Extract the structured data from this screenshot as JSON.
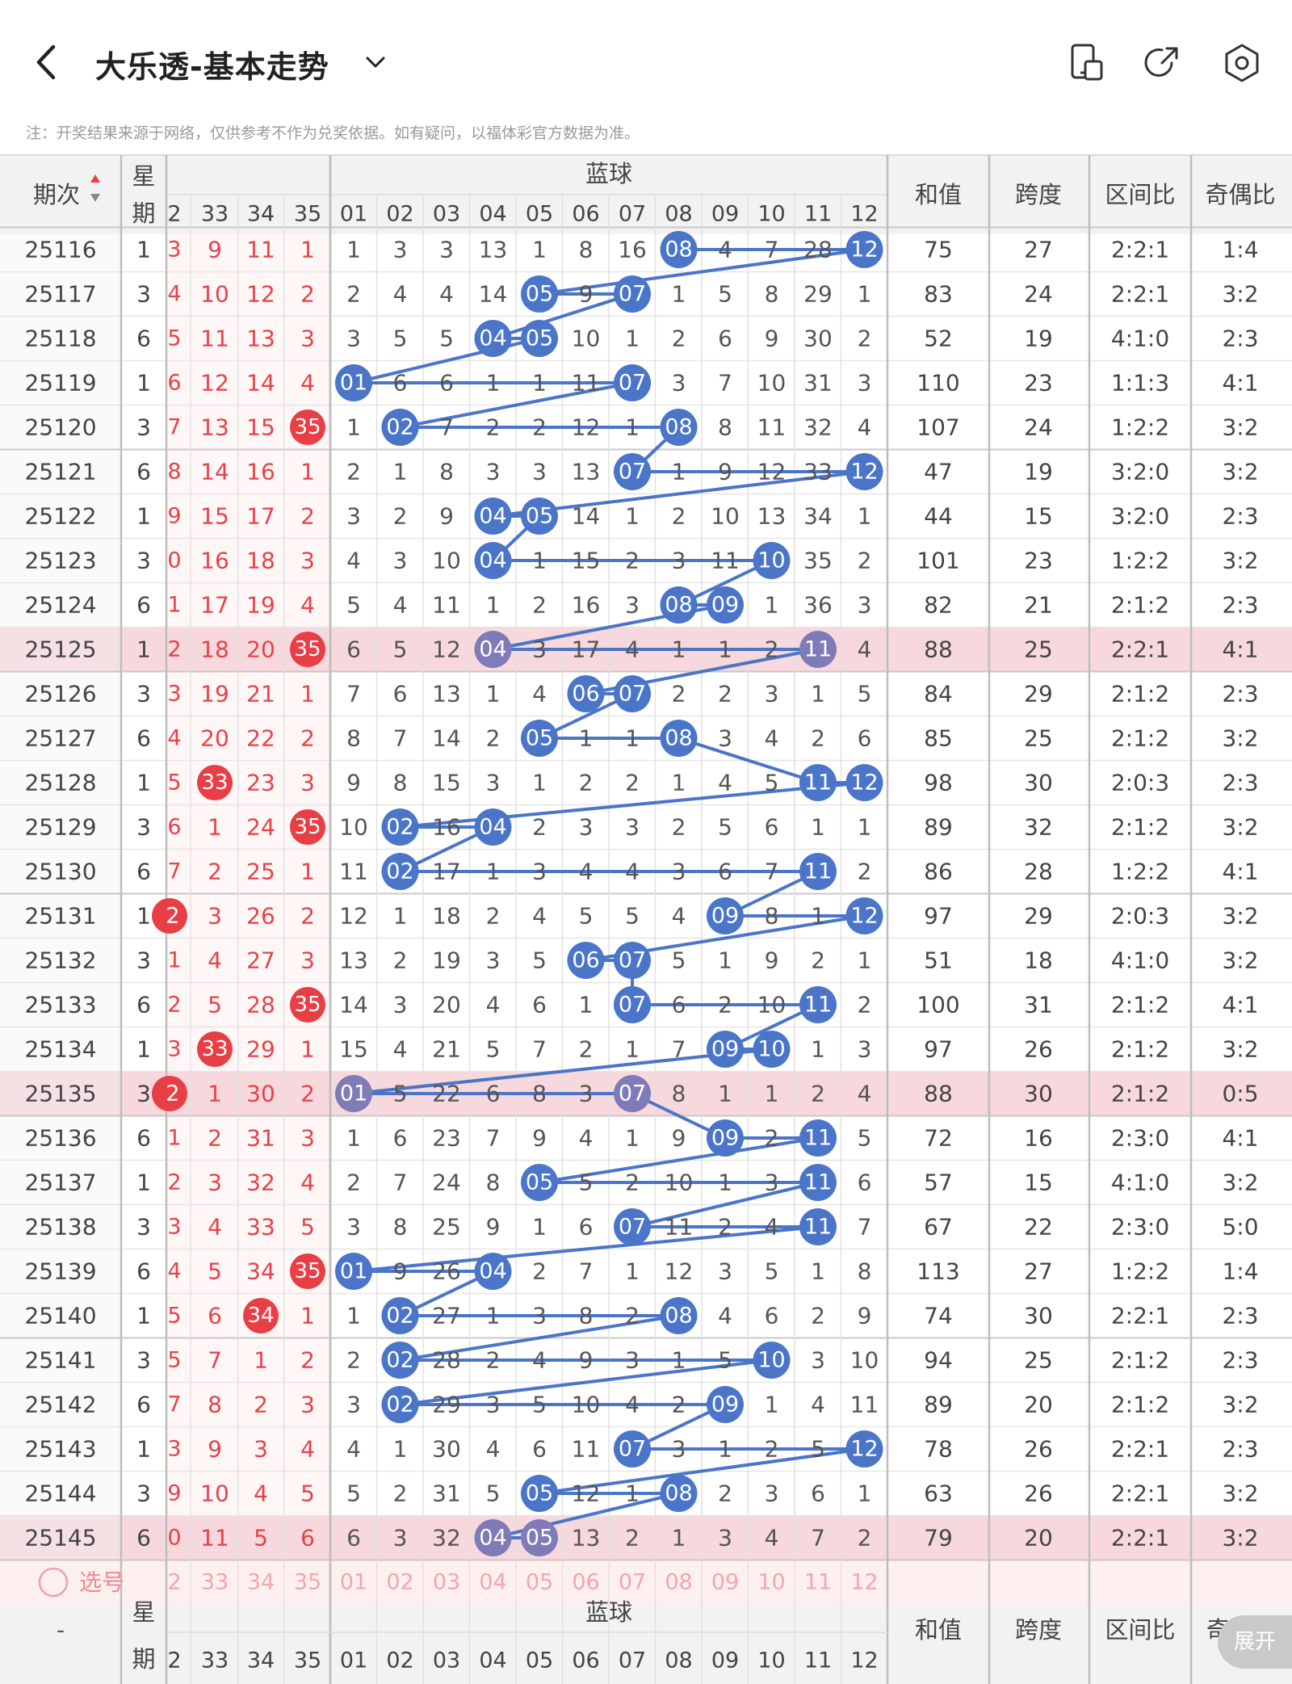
{
  "header": {
    "title": "大乐透-基本走势",
    "back_icon": "chevron-left-icon",
    "dropdown_icon": "chevron-down-icon",
    "icons": [
      "phone-layout-icon",
      "share-icon",
      "settings-icon"
    ]
  },
  "note": "注：开奖结果来源于网络，仅供参考不作为兑奖依据。如有疑问，以福体彩官方数据为准。",
  "colors": {
    "blue_ball": "#4a75c8",
    "red_ball": "#e83e46",
    "red_text": "#e6424a",
    "highlight_row": "#f7d8dc",
    "pick_row": "#fdf0ef",
    "header_bg": "#f2f2f2"
  },
  "table": {
    "col_period": "期次",
    "col_weekday": "星期",
    "front_partial": "2",
    "front_cols": [
      "33",
      "34",
      "35"
    ],
    "blue_title": "蓝球",
    "blue_cols": [
      "01",
      "02",
      "03",
      "04",
      "05",
      "06",
      "07",
      "08",
      "09",
      "10",
      "11",
      "12"
    ],
    "stat_cols": [
      "和值",
      "跨度",
      "区间比",
      "奇偶比"
    ],
    "rows": [
      {
        "p": "25116",
        "w": "1",
        "fp": "3",
        "f": [
          "9",
          "11",
          "1"
        ],
        "fb": null,
        "b": [
          "1",
          "3",
          "3",
          "13",
          "1",
          "8",
          "16",
          "08",
          "4",
          "7",
          "28",
          "12"
        ],
        "bb": [
          8,
          12
        ],
        "s": [
          "75",
          "27",
          "2:2:1",
          "1:4"
        ],
        "hl": false
      },
      {
        "p": "25117",
        "w": "3",
        "fp": "4",
        "f": [
          "10",
          "12",
          "2"
        ],
        "fb": null,
        "b": [
          "2",
          "4",
          "4",
          "14",
          "05",
          "9",
          "07",
          "1",
          "5",
          "8",
          "29",
          "1"
        ],
        "bb": [
          5,
          7
        ],
        "s": [
          "83",
          "24",
          "2:2:1",
          "3:2"
        ],
        "hl": false
      },
      {
        "p": "25118",
        "w": "6",
        "fp": "5",
        "f": [
          "11",
          "13",
          "3"
        ],
        "fb": null,
        "b": [
          "3",
          "5",
          "5",
          "04",
          "05",
          "10",
          "1",
          "2",
          "6",
          "9",
          "30",
          "2"
        ],
        "bb": [
          4,
          5
        ],
        "s": [
          "52",
          "19",
          "4:1:0",
          "2:3"
        ],
        "hl": false
      },
      {
        "p": "25119",
        "w": "1",
        "fp": "6",
        "f": [
          "12",
          "14",
          "4"
        ],
        "fb": null,
        "b": [
          "01",
          "6",
          "6",
          "1",
          "1",
          "11",
          "07",
          "3",
          "7",
          "10",
          "31",
          "3"
        ],
        "bb": [
          1,
          7
        ],
        "s": [
          "110",
          "23",
          "1:1:3",
          "4:1"
        ],
        "hl": false
      },
      {
        "p": "25120",
        "w": "3",
        "fp": "7",
        "f": [
          "13",
          "15",
          "35"
        ],
        "fb": 35,
        "b": [
          "1",
          "02",
          "7",
          "2",
          "2",
          "12",
          "1",
          "08",
          "8",
          "11",
          "32",
          "4"
        ],
        "bb": [
          2,
          8
        ],
        "s": [
          "107",
          "24",
          "1:2:2",
          "3:2"
        ],
        "hl": false
      },
      {
        "p": "25121",
        "w": "6",
        "fp": "8",
        "f": [
          "14",
          "16",
          "1"
        ],
        "fb": null,
        "b": [
          "2",
          "1",
          "8",
          "3",
          "3",
          "13",
          "07",
          "1",
          "9",
          "12",
          "33",
          "12"
        ],
        "bb": [
          7,
          12
        ],
        "s": [
          "47",
          "19",
          "3:2:0",
          "3:2"
        ],
        "hl": false
      },
      {
        "p": "25122",
        "w": "1",
        "fp": "9",
        "f": [
          "15",
          "17",
          "2"
        ],
        "fb": null,
        "b": [
          "3",
          "2",
          "9",
          "04",
          "05",
          "14",
          "1",
          "2",
          "10",
          "13",
          "34",
          "1"
        ],
        "bb": [
          4,
          5
        ],
        "s": [
          "44",
          "15",
          "3:2:0",
          "2:3"
        ],
        "hl": false
      },
      {
        "p": "25123",
        "w": "3",
        "fp": "0",
        "f": [
          "16",
          "18",
          "3"
        ],
        "fb": null,
        "b": [
          "4",
          "3",
          "10",
          "04",
          "1",
          "15",
          "2",
          "3",
          "11",
          "10",
          "35",
          "2"
        ],
        "bb": [
          4,
          10
        ],
        "s": [
          "101",
          "23",
          "1:2:2",
          "3:2"
        ],
        "hl": false
      },
      {
        "p": "25124",
        "w": "6",
        "fp": "1",
        "f": [
          "17",
          "19",
          "4"
        ],
        "fb": null,
        "b": [
          "5",
          "4",
          "11",
          "1",
          "2",
          "16",
          "3",
          "08",
          "09",
          "1",
          "36",
          "3"
        ],
        "bb": [
          8,
          9
        ],
        "s": [
          "82",
          "21",
          "2:1:2",
          "2:3"
        ],
        "hl": false
      },
      {
        "p": "25125",
        "w": "1",
        "fp": "2",
        "f": [
          "18",
          "20",
          "35"
        ],
        "fb": 35,
        "b": [
          "6",
          "5",
          "12",
          "04",
          "3",
          "17",
          "4",
          "1",
          "1",
          "2",
          "11",
          "4"
        ],
        "bb": [
          4,
          11
        ],
        "s": [
          "88",
          "25",
          "2:2:1",
          "4:1"
        ],
        "hl": true
      },
      {
        "p": "25126",
        "w": "3",
        "fp": "3",
        "f": [
          "19",
          "21",
          "1"
        ],
        "fb": null,
        "b": [
          "7",
          "6",
          "13",
          "1",
          "4",
          "06",
          "07",
          "2",
          "2",
          "3",
          "1",
          "5"
        ],
        "bb": [
          6,
          7
        ],
        "s": [
          "84",
          "29",
          "2:1:2",
          "2:3"
        ],
        "hl": false
      },
      {
        "p": "25127",
        "w": "6",
        "fp": "4",
        "f": [
          "20",
          "22",
          "2"
        ],
        "fb": null,
        "b": [
          "8",
          "7",
          "14",
          "2",
          "05",
          "1",
          "1",
          "08",
          "3",
          "4",
          "2",
          "6"
        ],
        "bb": [
          5,
          8
        ],
        "s": [
          "85",
          "25",
          "2:1:2",
          "3:2"
        ],
        "hl": false
      },
      {
        "p": "25128",
        "w": "1",
        "fp": "5",
        "f": [
          "33",
          "23",
          "3"
        ],
        "fb": 33,
        "b": [
          "9",
          "8",
          "15",
          "3",
          "1",
          "2",
          "2",
          "1",
          "4",
          "5",
          "11",
          "12"
        ],
        "bb": [
          11,
          12
        ],
        "s": [
          "98",
          "30",
          "2:0:3",
          "2:3"
        ],
        "hl": false
      },
      {
        "p": "25129",
        "w": "3",
        "fp": "6",
        "f": [
          "1",
          "24",
          "35"
        ],
        "fb": 35,
        "b": [
          "10",
          "02",
          "16",
          "04",
          "2",
          "3",
          "3",
          "2",
          "5",
          "6",
          "1",
          "1"
        ],
        "bb": [
          2,
          4
        ],
        "s": [
          "89",
          "32",
          "2:1:2",
          "3:2"
        ],
        "hl": false
      },
      {
        "p": "25130",
        "w": "6",
        "fp": "7",
        "f": [
          "2",
          "25",
          "1"
        ],
        "fb": null,
        "b": [
          "11",
          "02",
          "17",
          "1",
          "3",
          "4",
          "4",
          "3",
          "6",
          "7",
          "11",
          "2"
        ],
        "bb": [
          2,
          11
        ],
        "s": [
          "86",
          "28",
          "1:2:2",
          "4:1"
        ],
        "hl": false
      },
      {
        "p": "25131",
        "w": "1",
        "fp": "2",
        "f": [
          "3",
          "26",
          "2"
        ],
        "fb": 32,
        "b": [
          "12",
          "1",
          "18",
          "2",
          "4",
          "5",
          "5",
          "4",
          "09",
          "8",
          "1",
          "12"
        ],
        "bb": [
          9,
          12
        ],
        "s": [
          "97",
          "29",
          "2:0:3",
          "3:2"
        ],
        "hl": false
      },
      {
        "p": "25132",
        "w": "3",
        "fp": "1",
        "f": [
          "4",
          "27",
          "3"
        ],
        "fb": null,
        "b": [
          "13",
          "2",
          "19",
          "3",
          "5",
          "06",
          "07",
          "5",
          "1",
          "9",
          "2",
          "1"
        ],
        "bb": [
          6,
          7
        ],
        "s": [
          "51",
          "18",
          "4:1:0",
          "3:2"
        ],
        "hl": false
      },
      {
        "p": "25133",
        "w": "6",
        "fp": "2",
        "f": [
          "5",
          "28",
          "35"
        ],
        "fb": 35,
        "b": [
          "14",
          "3",
          "20",
          "4",
          "6",
          "1",
          "07",
          "6",
          "2",
          "10",
          "11",
          "2"
        ],
        "bb": [
          7,
          11
        ],
        "s": [
          "100",
          "31",
          "2:1:2",
          "4:1"
        ],
        "hl": false
      },
      {
        "p": "25134",
        "w": "1",
        "fp": "3",
        "f": [
          "33",
          "29",
          "1"
        ],
        "fb": 33,
        "b": [
          "15",
          "4",
          "21",
          "5",
          "7",
          "2",
          "1",
          "7",
          "09",
          "10",
          "1",
          "3"
        ],
        "bb": [
          9,
          10
        ],
        "s": [
          "97",
          "26",
          "2:1:2",
          "3:2"
        ],
        "hl": false
      },
      {
        "p": "25135",
        "w": "3",
        "fp": "2",
        "f": [
          "1",
          "30",
          "2"
        ],
        "fb": 32,
        "b": [
          "01",
          "5",
          "22",
          "6",
          "8",
          "3",
          "07",
          "8",
          "1",
          "1",
          "2",
          "4"
        ],
        "bb": [
          1,
          7
        ],
        "s": [
          "88",
          "30",
          "2:1:2",
          "0:5"
        ],
        "hl": true
      },
      {
        "p": "25136",
        "w": "6",
        "fp": "1",
        "f": [
          "2",
          "31",
          "3"
        ],
        "fb": null,
        "b": [
          "1",
          "6",
          "23",
          "7",
          "9",
          "4",
          "1",
          "9",
          "09",
          "2",
          "11",
          "5"
        ],
        "bb": [
          9,
          11
        ],
        "s": [
          "72",
          "16",
          "2:3:0",
          "4:1"
        ],
        "hl": false
      },
      {
        "p": "25137",
        "w": "1",
        "fp": "2",
        "f": [
          "3",
          "32",
          "4"
        ],
        "fb": null,
        "b": [
          "2",
          "7",
          "24",
          "8",
          "05",
          "5",
          "2",
          "10",
          "1",
          "3",
          "11",
          "6"
        ],
        "bb": [
          5,
          11
        ],
        "s": [
          "57",
          "15",
          "4:1:0",
          "3:2"
        ],
        "hl": false
      },
      {
        "p": "25138",
        "w": "3",
        "fp": "3",
        "f": [
          "4",
          "33",
          "5"
        ],
        "fb": null,
        "b": [
          "3",
          "8",
          "25",
          "9",
          "1",
          "6",
          "07",
          "11",
          "2",
          "4",
          "11",
          "7"
        ],
        "bb": [
          7,
          11
        ],
        "s": [
          "67",
          "22",
          "2:3:0",
          "5:0"
        ],
        "hl": false
      },
      {
        "p": "25139",
        "w": "6",
        "fp": "4",
        "f": [
          "5",
          "34",
          "35"
        ],
        "fb": 35,
        "b": [
          "01",
          "9",
          "26",
          "04",
          "2",
          "7",
          "1",
          "12",
          "3",
          "5",
          "1",
          "8"
        ],
        "bb": [
          1,
          4
        ],
        "s": [
          "113",
          "27",
          "1:2:2",
          "1:4"
        ],
        "hl": false
      },
      {
        "p": "25140",
        "w": "1",
        "fp": "5",
        "f": [
          "6",
          "34",
          "1"
        ],
        "fb": 34,
        "b": [
          "1",
          "02",
          "27",
          "1",
          "3",
          "8",
          "2",
          "08",
          "4",
          "6",
          "2",
          "9"
        ],
        "bb": [
          2,
          8
        ],
        "s": [
          "74",
          "30",
          "2:2:1",
          "2:3"
        ],
        "hl": false
      },
      {
        "p": "25141",
        "w": "3",
        "fp": "5",
        "f": [
          "7",
          "1",
          "2"
        ],
        "fb": null,
        "b": [
          "2",
          "02",
          "28",
          "2",
          "4",
          "9",
          "3",
          "1",
          "5",
          "10",
          "3",
          "10"
        ],
        "bb": [
          2,
          10
        ],
        "s": [
          "94",
          "25",
          "2:1:2",
          "2:3"
        ],
        "hl": false
      },
      {
        "p": "25142",
        "w": "6",
        "fp": "7",
        "f": [
          "8",
          "2",
          "3"
        ],
        "fb": null,
        "b": [
          "3",
          "02",
          "29",
          "3",
          "5",
          "10",
          "4",
          "2",
          "09",
          "1",
          "4",
          "11"
        ],
        "bb": [
          2,
          9
        ],
        "s": [
          "89",
          "20",
          "2:1:2",
          "3:2"
        ],
        "hl": false
      },
      {
        "p": "25143",
        "w": "1",
        "fp": "3",
        "f": [
          "9",
          "3",
          "4"
        ],
        "fb": null,
        "b": [
          "4",
          "1",
          "30",
          "4",
          "6",
          "11",
          "07",
          "3",
          "1",
          "2",
          "5",
          "12"
        ],
        "bb": [
          7,
          12
        ],
        "s": [
          "78",
          "26",
          "2:2:1",
          "2:3"
        ],
        "hl": false
      },
      {
        "p": "25144",
        "w": "3",
        "fp": "9",
        "f": [
          "10",
          "4",
          "5"
        ],
        "fb": null,
        "b": [
          "5",
          "2",
          "31",
          "5",
          "05",
          "12",
          "1",
          "08",
          "2",
          "3",
          "6",
          "1"
        ],
        "bb": [
          5,
          8
        ],
        "s": [
          "63",
          "26",
          "2:2:1",
          "3:2"
        ],
        "hl": false
      },
      {
        "p": "25145",
        "w": "6",
        "fp": "0",
        "f": [
          "11",
          "5",
          "6"
        ],
        "fb": null,
        "b": [
          "6",
          "3",
          "32",
          "04",
          "05",
          "13",
          "2",
          "1",
          "3",
          "4",
          "7",
          "2"
        ],
        "bb": [
          4,
          5
        ],
        "s": [
          "79",
          "20",
          "2:2:1",
          "3:2"
        ],
        "hl": true
      }
    ],
    "pick_label": "选号",
    "pick_front_partial": "2",
    "footer_dash": "-",
    "footer_stat_partial": "奇"
  },
  "expand_label": "展开"
}
